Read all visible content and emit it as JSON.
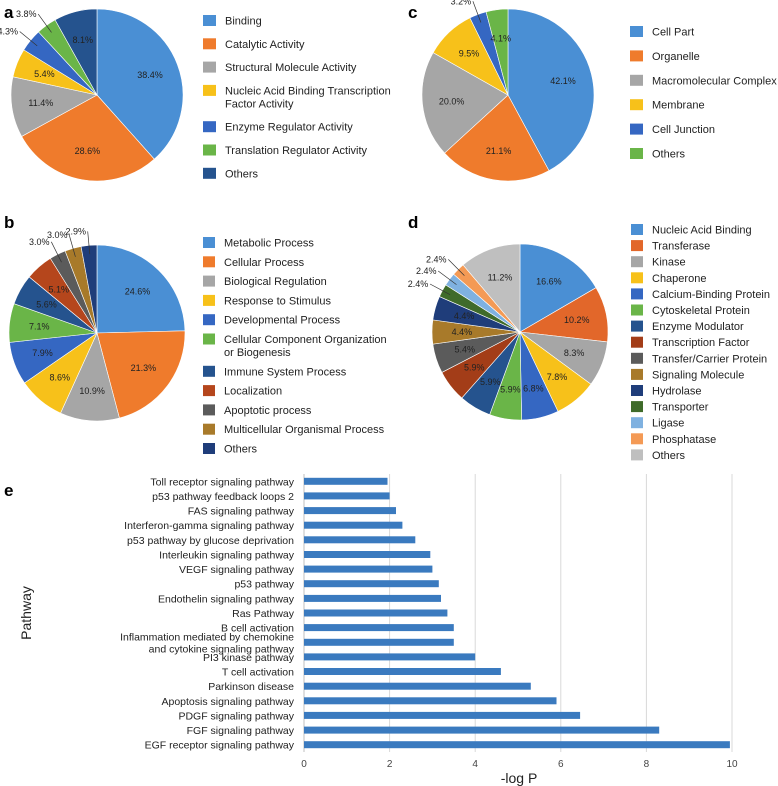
{
  "chart_data": [
    {
      "panel": "a",
      "type": "pie",
      "labels": [
        "Binding",
        "Catalytic Activity",
        "Structural Molecule Activity",
        "Nucleic Acid Binding Transcription Factor Activity",
        "Enzyme Regulator Activity",
        "Translation Regulator Activity",
        "Others"
      ],
      "legend_lines": [
        [
          "Binding"
        ],
        [
          "Catalytic Activity"
        ],
        [
          "Structural Molecule Activity"
        ],
        [
          "Nucleic Acid Binding Transcription",
          "Factor Activity"
        ],
        [
          "Enzyme Regulator Activity"
        ],
        [
          "Translation Regulator Activity"
        ],
        [
          "Others"
        ]
      ],
      "values": [
        38.4,
        28.6,
        11.4,
        5.4,
        4.3,
        3.8,
        8.1
      ],
      "value_labels": [
        "38.4%",
        "28.6%",
        "11.4%",
        "5.4%",
        "4.3%",
        "3.8%",
        "8.1%"
      ],
      "colors": [
        "#4a8fd4",
        "#ef7b2c",
        "#a6a6a6",
        "#f7c11a",
        "#3567c2",
        "#6ab548",
        "#25538e"
      ]
    },
    {
      "panel": "c",
      "type": "pie",
      "labels": [
        "Cell Part",
        "Organelle",
        "Macromolecular Complex",
        "Membrane",
        "Cell Junction",
        "Others"
      ],
      "legend_lines": [
        [
          "Cell Part"
        ],
        [
          "Organelle"
        ],
        [
          "Macromolecular Complex"
        ],
        [
          "Membrane"
        ],
        [
          "Cell Junction"
        ],
        [
          "Others"
        ]
      ],
      "values": [
        42.1,
        21.1,
        20.0,
        9.5,
        3.2,
        4.1
      ],
      "value_labels": [
        "42.1%",
        "21.1%",
        "20.0%",
        "9.5%",
        "3.2%",
        "4.1%"
      ],
      "colors": [
        "#4a8fd4",
        "#ef7b2c",
        "#a6a6a6",
        "#f7c11a",
        "#3567c2",
        "#6ab548"
      ]
    },
    {
      "panel": "b",
      "type": "pie",
      "labels": [
        "Metabolic Process",
        "Cellular Process",
        "Biological Regulation",
        "Response to Stimulus",
        "Developmental Process",
        "Cellular Component Organization or Biogenesis",
        "Immune System Process",
        "Localization",
        "Apoptotic process",
        "Multicellular Organismal Process",
        "Others"
      ],
      "legend_lines": [
        [
          "Metabolic Process"
        ],
        [
          "Cellular Process"
        ],
        [
          "Biological Regulation"
        ],
        [
          "Response to Stimulus"
        ],
        [
          "Developmental Process"
        ],
        [
          "Cellular Component Organization",
          "or Biogenesis"
        ],
        [
          "Immune System Process"
        ],
        [
          "Localization"
        ],
        [
          "Apoptotic process"
        ],
        [
          "Multicellular Organismal Process"
        ],
        [
          "Others"
        ]
      ],
      "values": [
        24.6,
        21.3,
        10.9,
        8.6,
        7.9,
        7.1,
        5.6,
        5.1,
        3.0,
        3.0,
        2.9
      ],
      "value_labels": [
        "24.6%",
        "21.3%",
        "10.9%",
        "8.6%",
        "7.9%",
        "7.1%",
        "5.6%",
        "5.1%",
        "3.0%",
        "3.0%",
        "2.9%"
      ],
      "colors": [
        "#4a8fd4",
        "#ef7b2c",
        "#a6a6a6",
        "#f7c11a",
        "#3567c2",
        "#6ab548",
        "#25538e",
        "#b5461c",
        "#5b5b5b",
        "#a87a2a",
        "#1f3d7a"
      ]
    },
    {
      "panel": "d",
      "type": "pie",
      "labels": [
        "Nucleic Acid Binding",
        "Transferase",
        "Kinase",
        "Chaperone",
        "Calcium-Binding Protein",
        "Cytoskeletal Protein",
        "Enzyme Modulator",
        "Transcription Factor",
        "Transfer/Carrier Protein",
        "Signaling Molecule",
        "Hydrolase",
        "Transporter",
        "Ligase",
        "Phosphatase",
        "Others"
      ],
      "legend_lines": [
        [
          "Nucleic Acid Binding"
        ],
        [
          "Transferase"
        ],
        [
          "Kinase"
        ],
        [
          "Chaperone"
        ],
        [
          "Calcium-Binding Protein"
        ],
        [
          "Cytoskeletal Protein"
        ],
        [
          "Enzyme Modulator"
        ],
        [
          "Transcription Factor"
        ],
        [
          "Transfer/Carrier Protein"
        ],
        [
          "Signaling Molecule"
        ],
        [
          "Hydrolase"
        ],
        [
          "Transporter"
        ],
        [
          "Ligase"
        ],
        [
          "Phosphatase"
        ],
        [
          "Others"
        ]
      ],
      "values": [
        16.6,
        10.2,
        8.3,
        7.8,
        6.8,
        5.9,
        5.9,
        5.9,
        5.4,
        4.4,
        4.4,
        2.4,
        2.4,
        2.4,
        11.2
      ],
      "value_labels": [
        "16.6%",
        "10.2%",
        "8.3%",
        "7.8%",
        "6.8%",
        "5.9%",
        "5.9%",
        "5.9%",
        "5.4%",
        "4.4%",
        "4.4%",
        "2.4%",
        "2.4%",
        "2.4%",
        "11.2%"
      ],
      "colors": [
        "#4a8fd4",
        "#e2672a",
        "#a6a6a6",
        "#f7c11a",
        "#3567c2",
        "#6ab548",
        "#25538e",
        "#a33d18",
        "#5b5b5b",
        "#a87a2a",
        "#1f3d7a",
        "#3f6b2a",
        "#7fb1e0",
        "#f49a55",
        "#bfbfbf"
      ]
    },
    {
      "panel": "e",
      "type": "bar",
      "orientation": "horizontal",
      "categories": [
        [
          "Toll receptor signaling pathway"
        ],
        [
          "p53 pathway feedback loops 2"
        ],
        [
          "FAS signaling pathway"
        ],
        [
          "Interferon-gamma signaling pathway"
        ],
        [
          "p53 pathway by glucose deprivation"
        ],
        [
          "Interleukin signaling pathway"
        ],
        [
          "VEGF signaling pathway"
        ],
        [
          "p53 pathway"
        ],
        [
          "Endothelin signaling pathway"
        ],
        [
          "Ras Pathway"
        ],
        [
          "B cell activation"
        ],
        [
          "Inflammation mediated by chemokine",
          "and cytokine signaling pathway"
        ],
        [
          "PI3 kinase pathway"
        ],
        [
          "T cell activation"
        ],
        [
          "Parkinson disease"
        ],
        [
          "Apoptosis signaling pathway"
        ],
        [
          "PDGF signaling pathway"
        ],
        [
          "FGF signaling pathway"
        ],
        [
          "EGF receptor signaling pathway"
        ]
      ],
      "values": [
        1.95,
        2.0,
        2.15,
        2.3,
        2.6,
        2.95,
        3.0,
        3.15,
        3.2,
        3.35,
        3.5,
        3.5,
        4.0,
        4.6,
        5.3,
        5.9,
        6.45,
        8.3,
        9.95
      ],
      "xlim": [
        0,
        10
      ],
      "xticks": [
        "0",
        "2",
        "4",
        "6",
        "8",
        "10"
      ],
      "xlabel": "-log P",
      "ylabel": "Pathway",
      "bar_color": "#3a7abf",
      "grid": true
    }
  ]
}
